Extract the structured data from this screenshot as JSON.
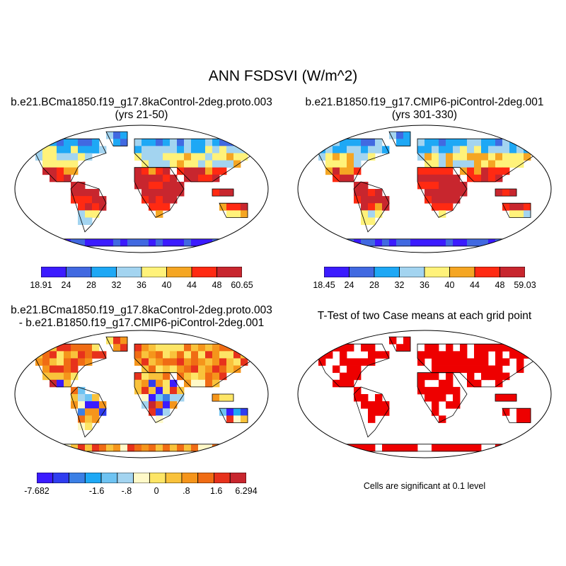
{
  "figure": {
    "title": "ANN FSDSVI (W/m^2)",
    "panels": [
      {
        "id": "case1",
        "title_line1": "b.e21.BCma1850.f19_g17.8kaControl-2deg.proto.003",
        "title_line2": "(yrs 21-50)",
        "colorbar": {
          "labels": [
            "18.91",
            "24",
            "28",
            "32",
            "36",
            "40",
            "44",
            "48",
            "60.65"
          ],
          "colors": [
            "#3b1bff",
            "#4169e1",
            "#1ea8f5",
            "#a3d4f0",
            "#fff27a",
            "#f5a623",
            "#ff2a12",
            "#c8262e"
          ]
        }
      },
      {
        "id": "case2",
        "title_line1": "b.e21.B1850.f19_g17.CMIP6-piControl-2deg.001",
        "title_line2": "(yrs 301-330)",
        "colorbar": {
          "labels": [
            "18.45",
            "24",
            "28",
            "32",
            "36",
            "40",
            "44",
            "48",
            "59.03"
          ],
          "colors": [
            "#3b1bff",
            "#4169e1",
            "#1ea8f5",
            "#a3d4f0",
            "#fff27a",
            "#f5a623",
            "#ff2a12",
            "#c8262e"
          ]
        }
      },
      {
        "id": "diff",
        "title_line1": "b.e21.BCma1850.f19_g17.8kaControl-2deg.proto.003",
        "title_line2": "- b.e21.B1850.f19_g17.CMIP6-piControl-2deg.001",
        "colorbar": {
          "labels": [
            "-7.682",
            "-1.6",
            "-.8",
            "0",
            ".8",
            "1.6",
            "6.294"
          ],
          "colors": [
            "#3b1bff",
            "#2f3df0",
            "#3b7fe5",
            "#1ea8f5",
            "#6ec3f2",
            "#a3d4f0",
            "#fff9c8",
            "#fde566",
            "#f9c23b",
            "#f5951b",
            "#f06c14",
            "#e7321c",
            "#c8262e"
          ]
        }
      },
      {
        "id": "ttest",
        "title_line1": "T-Test of two Case means at each grid point",
        "note": "Cells are significant at 0.1 level",
        "significant_color": "#ee0000"
      }
    ]
  }
}
